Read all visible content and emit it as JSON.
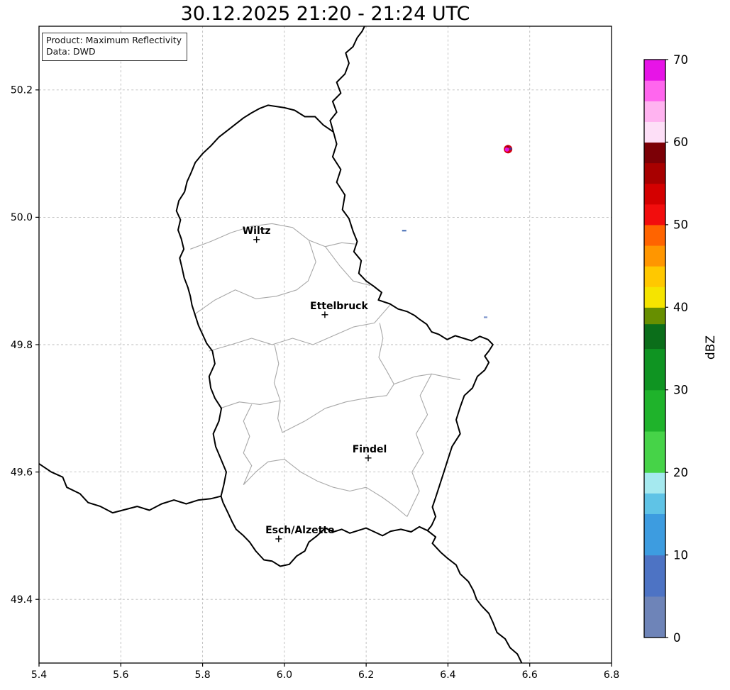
{
  "title": "30.12.2025 21:20 - 21:24 UTC",
  "info": {
    "line1": "Product: Maximum Reflectivity",
    "line2": "Data: DWD"
  },
  "axes": {
    "xlim": [
      5.4,
      6.8
    ],
    "ylim": [
      49.3,
      50.3
    ],
    "grid": true,
    "xticks": [
      {
        "value": 5.4,
        "label": "5.4"
      },
      {
        "value": 5.6,
        "label": "5.6"
      },
      {
        "value": 5.8,
        "label": "5.8"
      },
      {
        "value": 6.0,
        "label": "6.0"
      },
      {
        "value": 6.2,
        "label": "6.2"
      },
      {
        "value": 6.4,
        "label": "6.4"
      },
      {
        "value": 6.6,
        "label": "6.6"
      },
      {
        "value": 6.8,
        "label": "6.8"
      }
    ],
    "yticks": [
      {
        "value": 49.4,
        "label": "49.4"
      },
      {
        "value": 49.6,
        "label": "49.6"
      },
      {
        "value": 49.8,
        "label": "49.8"
      },
      {
        "value": 50.0,
        "label": "50.0"
      },
      {
        "value": 50.2,
        "label": "50.2"
      }
    ]
  },
  "colorbar": {
    "label": "dBZ",
    "min": 0,
    "max": 70,
    "ticks": [
      {
        "value": 0,
        "label": "0"
      },
      {
        "value": 10,
        "label": "10"
      },
      {
        "value": 20,
        "label": "20"
      },
      {
        "value": 30,
        "label": "30"
      },
      {
        "value": 40,
        "label": "40"
      },
      {
        "value": 50,
        "label": "50"
      },
      {
        "value": 60,
        "label": "60"
      },
      {
        "value": 70,
        "label": "70"
      }
    ],
    "segments": [
      {
        "from": 0,
        "to": 5,
        "color": "#6e84b8"
      },
      {
        "from": 5,
        "to": 10,
        "color": "#4d73c4"
      },
      {
        "from": 10,
        "to": 15,
        "color": "#3d9ce0"
      },
      {
        "from": 15,
        "to": 17.5,
        "color": "#5fc3e6"
      },
      {
        "from": 17.5,
        "to": 20,
        "color": "#a5e9ef"
      },
      {
        "from": 20,
        "to": 25,
        "color": "#46d348"
      },
      {
        "from": 25,
        "to": 30,
        "color": "#1fb32b"
      },
      {
        "from": 30,
        "to": 35,
        "color": "#0f9422"
      },
      {
        "from": 35,
        "to": 38,
        "color": "#0b6e1a"
      },
      {
        "from": 38,
        "to": 40,
        "color": "#678f00"
      },
      {
        "from": 40,
        "to": 42.5,
        "color": "#f5e400"
      },
      {
        "from": 42.5,
        "to": 45,
        "color": "#ffc800"
      },
      {
        "from": 45,
        "to": 47.5,
        "color": "#ff9600"
      },
      {
        "from": 47.5,
        "to": 50,
        "color": "#ff6400"
      },
      {
        "from": 50,
        "to": 52.5,
        "color": "#f20d0d"
      },
      {
        "from": 52.5,
        "to": 55,
        "color": "#d40000"
      },
      {
        "from": 55,
        "to": 57.5,
        "color": "#a80000"
      },
      {
        "from": 57.5,
        "to": 60,
        "color": "#7c0006"
      },
      {
        "from": 60,
        "to": 62.5,
        "color": "#fddff7"
      },
      {
        "from": 62.5,
        "to": 65,
        "color": "#ffb3f0"
      },
      {
        "from": 65,
        "to": 67.5,
        "color": "#ff66ee"
      },
      {
        "from": 67.5,
        "to": 70,
        "color": "#e714e7"
      }
    ]
  },
  "map": {
    "cities": [
      {
        "name": "Wiltz",
        "lon": 5.932,
        "lat": 49.965,
        "label_dx": 0
      },
      {
        "name": "Ettelbruck",
        "lon": 6.099,
        "lat": 49.847,
        "label_dx": 20
      },
      {
        "name": "Findel",
        "lon": 6.205,
        "lat": 49.622,
        "label_dx": 2
      },
      {
        "name": "Esch/Alzette",
        "lon": 5.986,
        "lat": 49.495,
        "label_dx": 30
      }
    ],
    "echo_cells": [
      {
        "lon": 6.547,
        "lat": 50.107,
        "pixels": [
          {
            "dx": 0,
            "dy": 0,
            "r": 6,
            "color": "#d40012"
          },
          {
            "dx": -1.5,
            "dy": 0.5,
            "r": 3,
            "color": "#e616e6"
          },
          {
            "dx": 3.5,
            "dy": -0.5,
            "r": 1.7,
            "color": "#3a3a99"
          },
          {
            "dx": -0.5,
            "dy": -3.5,
            "r": 1.4,
            "color": "#8a0010"
          }
        ]
      }
    ],
    "weak_echoes": [
      {
        "lon": 6.293,
        "lat": 49.979,
        "w": 6,
        "h": 2.2,
        "color": "#4f74b8"
      },
      {
        "lon": 6.492,
        "lat": 49.843,
        "w": 5,
        "h": 2.2,
        "color": "#7d95cc"
      }
    ],
    "country_borders": {
      "luxembourg": [
        [
          5.96,
          50.176
        ],
        [
          6.0,
          50.172
        ],
        [
          6.025,
          50.168
        ],
        [
          6.05,
          50.158
        ],
        [
          6.075,
          50.158
        ],
        [
          6.095,
          50.145
        ],
        [
          6.12,
          50.134
        ],
        [
          6.128,
          50.115
        ],
        [
          6.118,
          50.095
        ],
        [
          6.138,
          50.075
        ],
        [
          6.128,
          50.055
        ],
        [
          6.148,
          50.035
        ],
        [
          6.142,
          50.012
        ],
        [
          6.158,
          49.998
        ],
        [
          6.168,
          49.978
        ],
        [
          6.178,
          49.962
        ],
        [
          6.17,
          49.946
        ],
        [
          6.188,
          49.932
        ],
        [
          6.182,
          49.912
        ],
        [
          6.2,
          49.9
        ],
        [
          6.218,
          49.892
        ],
        [
          6.238,
          49.882
        ],
        [
          6.23,
          49.87
        ],
        [
          6.258,
          49.864
        ],
        [
          6.278,
          49.856
        ],
        [
          6.3,
          49.852
        ],
        [
          6.318,
          49.846
        ],
        [
          6.33,
          49.84
        ],
        [
          6.348,
          49.832
        ],
        [
          6.36,
          49.82
        ],
        [
          6.378,
          49.816
        ],
        [
          6.398,
          49.808
        ],
        [
          6.418,
          49.814
        ],
        [
          6.438,
          49.81
        ],
        [
          6.458,
          49.806
        ],
        [
          6.478,
          49.813
        ],
        [
          6.498,
          49.808
        ],
        [
          6.51,
          49.8
        ],
        [
          6.5,
          49.79
        ],
        [
          6.49,
          49.782
        ],
        [
          6.5,
          49.772
        ],
        [
          6.49,
          49.76
        ],
        [
          6.472,
          49.75
        ],
        [
          6.46,
          49.732
        ],
        [
          6.44,
          49.72
        ],
        [
          6.43,
          49.702
        ],
        [
          6.42,
          49.682
        ],
        [
          6.43,
          49.66
        ],
        [
          6.41,
          49.64
        ],
        [
          6.4,
          49.62
        ],
        [
          6.39,
          49.6
        ],
        [
          6.38,
          49.58
        ],
        [
          6.37,
          49.56
        ],
        [
          6.362,
          49.545
        ],
        [
          6.37,
          49.53
        ],
        [
          6.36,
          49.516
        ],
        [
          6.35,
          49.508
        ],
        [
          6.33,
          49.514
        ],
        [
          6.31,
          49.506
        ],
        [
          6.285,
          49.51
        ],
        [
          6.26,
          49.507
        ],
        [
          6.24,
          49.5
        ],
        [
          6.22,
          49.506
        ],
        [
          6.2,
          49.512
        ],
        [
          6.18,
          49.508
        ],
        [
          6.16,
          49.504
        ],
        [
          6.14,
          49.51
        ],
        [
          6.12,
          49.506
        ],
        [
          6.1,
          49.512
        ],
        [
          6.08,
          49.5
        ],
        [
          6.06,
          49.49
        ],
        [
          6.05,
          49.476
        ],
        [
          6.03,
          49.468
        ],
        [
          6.012,
          49.455
        ],
        [
          5.99,
          49.452
        ],
        [
          5.97,
          49.46
        ],
        [
          5.95,
          49.462
        ],
        [
          5.93,
          49.476
        ],
        [
          5.915,
          49.49
        ],
        [
          5.9,
          49.5
        ],
        [
          5.882,
          49.51
        ],
        [
          5.872,
          49.522
        ],
        [
          5.862,
          49.536
        ],
        [
          5.85,
          49.552
        ],
        [
          5.845,
          49.562
        ],
        [
          5.852,
          49.58
        ],
        [
          5.858,
          49.6
        ],
        [
          5.845,
          49.62
        ],
        [
          5.832,
          49.64
        ],
        [
          5.826,
          49.66
        ],
        [
          5.84,
          49.68
        ],
        [
          5.846,
          49.7
        ],
        [
          5.83,
          49.716
        ],
        [
          5.82,
          49.732
        ],
        [
          5.816,
          49.75
        ],
        [
          5.83,
          49.77
        ],
        [
          5.824,
          49.79
        ],
        [
          5.81,
          49.802
        ],
        [
          5.8,
          49.816
        ],
        [
          5.79,
          49.83
        ],
        [
          5.782,
          49.846
        ],
        [
          5.774,
          49.862
        ],
        [
          5.77,
          49.876
        ],
        [
          5.764,
          49.89
        ],
        [
          5.755,
          49.905
        ],
        [
          5.75,
          49.92
        ],
        [
          5.744,
          49.936
        ],
        [
          5.754,
          49.95
        ],
        [
          5.748,
          49.966
        ],
        [
          5.74,
          49.98
        ],
        [
          5.746,
          49.996
        ],
        [
          5.736,
          50.01
        ],
        [
          5.742,
          50.026
        ],
        [
          5.756,
          50.04
        ],
        [
          5.762,
          50.056
        ],
        [
          5.772,
          50.07
        ],
        [
          5.782,
          50.086
        ],
        [
          5.8,
          50.1
        ],
        [
          5.82,
          50.112
        ],
        [
          5.84,
          50.126
        ],
        [
          5.86,
          50.136
        ],
        [
          5.88,
          50.146
        ],
        [
          5.9,
          50.156
        ],
        [
          5.92,
          50.164
        ],
        [
          5.94,
          50.171
        ],
        [
          5.96,
          50.176
        ]
      ],
      "belgium_germany": [
        [
          6.12,
          50.134
        ],
        [
          6.112,
          50.152
        ],
        [
          6.128,
          50.165
        ],
        [
          6.118,
          50.182
        ],
        [
          6.138,
          50.195
        ],
        [
          6.128,
          50.212
        ],
        [
          6.148,
          50.225
        ],
        [
          6.158,
          50.242
        ],
        [
          6.15,
          50.258
        ],
        [
          6.168,
          50.268
        ],
        [
          6.178,
          50.282
        ],
        [
          6.19,
          50.292
        ],
        [
          6.2,
          50.305
        ]
      ],
      "france_belgium": [
        [
          5.4,
          49.613
        ],
        [
          5.43,
          49.6
        ],
        [
          5.458,
          49.592
        ],
        [
          5.468,
          49.576
        ],
        [
          5.5,
          49.566
        ],
        [
          5.52,
          49.552
        ],
        [
          5.55,
          49.546
        ],
        [
          5.58,
          49.536
        ],
        [
          5.61,
          49.541
        ],
        [
          5.64,
          49.546
        ],
        [
          5.67,
          49.54
        ],
        [
          5.7,
          49.55
        ],
        [
          5.73,
          49.556
        ],
        [
          5.76,
          49.55
        ],
        [
          5.79,
          49.556
        ],
        [
          5.82,
          49.558
        ],
        [
          5.845,
          49.562
        ]
      ],
      "france_germany": [
        [
          6.35,
          49.508
        ],
        [
          6.37,
          49.498
        ],
        [
          6.362,
          49.488
        ],
        [
          6.382,
          49.474
        ],
        [
          6.4,
          49.464
        ],
        [
          6.42,
          49.454
        ],
        [
          6.43,
          49.44
        ],
        [
          6.45,
          49.428
        ],
        [
          6.462,
          49.414
        ],
        [
          6.47,
          49.4
        ],
        [
          6.482,
          49.39
        ],
        [
          6.5,
          49.378
        ],
        [
          6.51,
          49.364
        ],
        [
          6.52,
          49.348
        ],
        [
          6.54,
          49.338
        ],
        [
          6.552,
          49.324
        ],
        [
          6.57,
          49.314
        ],
        [
          6.582,
          49.298
        ]
      ]
    },
    "district_borders": [
      [
        [
          5.77,
          49.95
        ],
        [
          5.82,
          49.962
        ],
        [
          5.87,
          49.976
        ],
        [
          5.92,
          49.986
        ],
        [
          5.97,
          49.99
        ],
        [
          6.02,
          49.984
        ],
        [
          6.06,
          49.964
        ],
        [
          6.1,
          49.954
        ],
        [
          6.14,
          49.96
        ],
        [
          6.172,
          49.958
        ]
      ],
      [
        [
          5.781,
          49.848
        ],
        [
          5.83,
          49.87
        ],
        [
          5.88,
          49.886
        ],
        [
          5.93,
          49.872
        ],
        [
          5.98,
          49.876
        ],
        [
          6.03,
          49.886
        ],
        [
          6.058,
          49.9
        ],
        [
          6.077,
          49.93
        ],
        [
          6.06,
          49.964
        ]
      ],
      [
        [
          6.1,
          49.954
        ],
        [
          6.135,
          49.924
        ],
        [
          6.168,
          49.9
        ],
        [
          6.21,
          49.893
        ]
      ],
      [
        [
          5.816,
          49.79
        ],
        [
          5.87,
          49.8
        ],
        [
          5.92,
          49.81
        ],
        [
          5.97,
          49.8
        ],
        [
          6.02,
          49.81
        ],
        [
          6.07,
          49.8
        ],
        [
          6.12,
          49.814
        ],
        [
          6.17,
          49.828
        ],
        [
          6.22,
          49.834
        ],
        [
          6.258,
          49.862
        ]
      ],
      [
        [
          5.976,
          49.8
        ],
        [
          5.986,
          49.77
        ],
        [
          5.975,
          49.74
        ],
        [
          5.99,
          49.712
        ],
        [
          5.984,
          49.684
        ],
        [
          5.995,
          49.662
        ]
      ],
      [
        [
          6.233,
          49.834
        ],
        [
          6.241,
          49.81
        ],
        [
          6.231,
          49.78
        ],
        [
          6.251,
          49.758
        ],
        [
          6.268,
          49.738
        ]
      ],
      [
        [
          5.995,
          49.662
        ],
        [
          6.05,
          49.68
        ],
        [
          6.1,
          49.7
        ],
        [
          6.15,
          49.71
        ],
        [
          6.2,
          49.716
        ],
        [
          6.25,
          49.72
        ],
        [
          6.268,
          49.738
        ],
        [
          6.32,
          49.75
        ],
        [
          6.36,
          49.754
        ],
        [
          6.405,
          49.748
        ],
        [
          6.43,
          49.745
        ]
      ],
      [
        [
          5.843,
          49.7
        ],
        [
          5.89,
          49.71
        ],
        [
          5.94,
          49.706
        ],
        [
          5.99,
          49.712
        ]
      ],
      [
        [
          5.9,
          49.58
        ],
        [
          5.93,
          49.6
        ],
        [
          5.96,
          49.616
        ],
        [
          6.0,
          49.62
        ],
        [
          6.04,
          49.6
        ],
        [
          6.08,
          49.586
        ],
        [
          6.12,
          49.576
        ],
        [
          6.16,
          49.57
        ],
        [
          6.2,
          49.576
        ],
        [
          6.24,
          49.56
        ],
        [
          6.27,
          49.546
        ],
        [
          6.3,
          49.53
        ]
      ],
      [
        [
          6.36,
          49.754
        ],
        [
          6.332,
          49.72
        ],
        [
          6.35,
          49.69
        ],
        [
          6.322,
          49.66
        ],
        [
          6.34,
          49.63
        ],
        [
          6.312,
          49.6
        ],
        [
          6.33,
          49.57
        ],
        [
          6.3,
          49.53
        ]
      ],
      [
        [
          5.92,
          49.706
        ],
        [
          5.9,
          49.68
        ],
        [
          5.915,
          49.656
        ],
        [
          5.9,
          49.63
        ],
        [
          5.92,
          49.61
        ],
        [
          5.9,
          49.58
        ]
      ]
    ]
  },
  "chart_data": {
    "type": "scatter",
    "title": "30.12.2025 21:20 - 21:24 UTC",
    "xlabel": "",
    "ylabel": "",
    "xlim": [
      5.4,
      6.8
    ],
    "ylim": [
      49.3,
      50.3
    ],
    "grid": true,
    "colorbar_label": "dBZ",
    "colorbar_range": [
      0,
      70
    ],
    "points": [
      {
        "lon": 6.547,
        "lat": 50.107,
        "dbz_estimate": 65,
        "note": "strong cell, red core with magenta center"
      },
      {
        "lon": 6.293,
        "lat": 49.979,
        "dbz_estimate": 5,
        "note": "weak speck"
      },
      {
        "lon": 6.492,
        "lat": 49.843,
        "dbz_estimate": 5,
        "note": "weak speck"
      }
    ]
  }
}
